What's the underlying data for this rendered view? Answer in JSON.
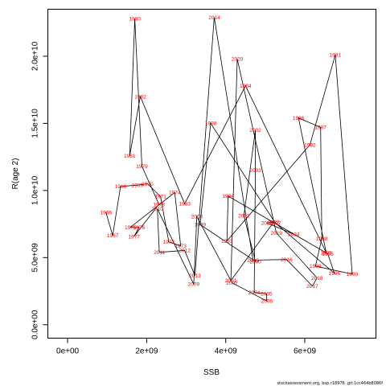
{
  "chart_data": {
    "type": "line",
    "xlabel": "SSB",
    "ylabel": "R(age 2)",
    "xlim": [
      -500000000.0,
      7800000000.0
    ],
    "ylim": [
      -1000000000.0,
      23500000000.0
    ],
    "x_ticks": [
      {
        "value": 0,
        "label": "0e+00"
      },
      {
        "value": 2000000000.0,
        "label": "2e+09"
      },
      {
        "value": 4000000000.0,
        "label": "4e+09"
      },
      {
        "value": 6000000000.0,
        "label": "6e+09"
      }
    ],
    "y_ticks": [
      {
        "value": 0,
        "label": "0.0e+00"
      },
      {
        "value": 5000000000.0,
        "label": "5.0e+09"
      },
      {
        "value": 10000000000.0,
        "label": "1.0e+10"
      },
      {
        "value": 15000000000.0,
        "label": "1.5e+10"
      },
      {
        "value": 20000000000.0,
        "label": "2.0e+10"
      }
    ],
    "points": [
      {
        "year": "1966",
        "x": 970000000.0,
        "y": 8360000000.0
      },
      {
        "year": "1967",
        "x": 1140000000.0,
        "y": 6650000000.0
      },
      {
        "year": "1968",
        "x": 1340000000.0,
        "y": 10300000000.0
      },
      {
        "year": "1969",
        "x": 1760000000.0,
        "y": 10400000000.0
      },
      {
        "year": "1970",
        "x": 2020000000.0,
        "y": 10500000000.0
      },
      {
        "year": "1971",
        "x": 2350000000.0,
        "y": 9550000000.0
      },
      {
        "year": "1972",
        "x": 2560000000.0,
        "y": 6170000000.0
      },
      {
        "year": "1973",
        "x": 2860000000.0,
        "y": 5870000000.0
      },
      {
        "year": "1974",
        "x": 2710000000.0,
        "y": 9850000000.0
      },
      {
        "year": "1975",
        "x": 1590000000.0,
        "y": 7260000000.0
      },
      {
        "year": "1976",
        "x": 1810000000.0,
        "y": 7260000000.0
      },
      {
        "year": "1977",
        "x": 1680000000.0,
        "y": 6580000000.0
      },
      {
        "year": "1978",
        "x": 2310000000.0,
        "y": 8970000000.0
      },
      {
        "year": "1979",
        "x": 1880000000.0,
        "y": 11800000000.0
      },
      {
        "year": "1980",
        "x": 1700000000.0,
        "y": 22800000000.0
      },
      {
        "year": "1981",
        "x": 1570000000.0,
        "y": 12600000000.0
      },
      {
        "year": "1982",
        "x": 1840000000.0,
        "y": 17000000000.0
      },
      {
        "year": "1983",
        "x": 2960000000.0,
        "y": 9010000000.0
      },
      {
        "year": "1984",
        "x": 4500000000.0,
        "y": 17800000000.0
      },
      {
        "year": "1985",
        "x": 6540000000.0,
        "y": 5380000000.0
      },
      {
        "year": "1986",
        "x": 5840000000.0,
        "y": 15400000000.0
      },
      {
        "year": "1987",
        "x": 6400000000.0,
        "y": 14700000000.0
      },
      {
        "year": "1988",
        "x": 6430000000.0,
        "y": 6430000000.0
      },
      {
        "year": "1989",
        "x": 6270000000.0,
        "y": 4370000000.0
      },
      {
        "year": "1990",
        "x": 7200000000.0,
        "y": 3770000000.0
      },
      {
        "year": "1991",
        "x": 6770000000.0,
        "y": 20100000000.0
      },
      {
        "year": "1992",
        "x": 6130000000.0,
        "y": 13400000000.0
      },
      {
        "year": "1993",
        "x": 4030000000.0,
        "y": 6240000000.0
      },
      {
        "year": "1994",
        "x": 4060000000.0,
        "y": 9580000000.0
      },
      {
        "year": "1995",
        "x": 6580000000.0,
        "y": 5290000000.0
      },
      {
        "year": "1996",
        "x": 6750000000.0,
        "y": 3830000000.0
      },
      {
        "year": "1997",
        "x": 5250000000.0,
        "y": 7590000000.0
      },
      {
        "year": "1998",
        "x": 3620000000.0,
        "y": 15000000000.0
      },
      {
        "year": "1999",
        "x": 3350000000.0,
        "y": 7460000000.0
      },
      {
        "year": "2000",
        "x": 4750000000.0,
        "y": 4720000000.0
      },
      {
        "year": "2001",
        "x": 4460000000.0,
        "y": 8120000000.0
      },
      {
        "year": "2002",
        "x": 4750000000.0,
        "y": 14500000000.0
      },
      {
        "year": "2003",
        "x": 4750000000.0,
        "y": 11500000000.0
      },
      {
        "year": "2004",
        "x": 4720000000.0,
        "y": 2410000000.0
      },
      {
        "year": "2005",
        "x": 5030000000.0,
        "y": 2310000000.0
      },
      {
        "year": "2006",
        "x": 5040000000.0,
        "y": 1770000000.0
      },
      {
        "year": "2007",
        "x": 4160000000.0,
        "y": 3120000000.0
      },
      {
        "year": "2008",
        "x": 3270000000.0,
        "y": 8060000000.0
      },
      {
        "year": "2009",
        "x": 3190000000.0,
        "y": 3020000000.0
      },
      {
        "year": "2010",
        "x": 2270000000.0,
        "y": 8640000000.0
      },
      {
        "year": "2011",
        "x": 2320000000.0,
        "y": 5390000000.0
      },
      {
        "year": "2012",
        "x": 2960000000.0,
        "y": 5540000000.0
      },
      {
        "year": "2013",
        "x": 3220000000.0,
        "y": 3660000000.0
      },
      {
        "year": "2014",
        "x": 3710000000.0,
        "y": 22900000000.0
      },
      {
        "year": "2015",
        "x": 4690000000.0,
        "y": 4810000000.0
      },
      {
        "year": "2016",
        "x": 5540000000.0,
        "y": 4860000000.0
      },
      {
        "year": "2017",
        "x": 6190000000.0,
        "y": 2880000000.0
      },
      {
        "year": "2018",
        "x": 6310000000.0,
        "y": 3480000000.0
      },
      {
        "year": "2019",
        "x": 5280000000.0,
        "y": 6840000000.0
      },
      {
        "year": "2020",
        "x": 4290000000.0,
        "y": 19800000000.0
      },
      {
        "year": "2021",
        "x": 4130000000.0,
        "y": 3290000000.0
      },
      {
        "year": "2022",
        "x": 5210000000.0,
        "y": 7640000000.0
      },
      {
        "year": "2023",
        "x": 5040000000.0,
        "y": 7590000000.0
      },
      {
        "year": "2024",
        "x": 5720000000.0,
        "y": 6740000000.0
      }
    ]
  },
  "footer": {
    "caption": "stockassessment.org, bsp.r18976 .git:1cc464b8086f"
  }
}
